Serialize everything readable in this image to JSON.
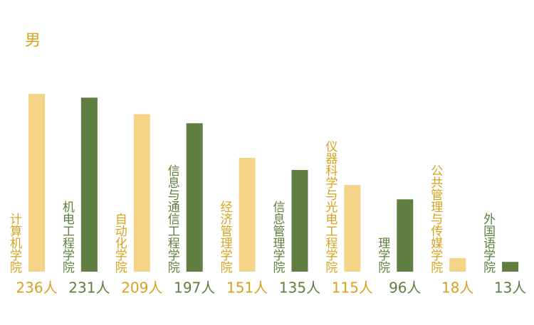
{
  "chart_data": {
    "type": "bar",
    "title": "男",
    "categories": [
      "计算机学院",
      "机电工程学院",
      "自动化学院",
      "信息与通信工程学院",
      "经济管理学院",
      "信息管理学院",
      "仪器科学与光电工程学院",
      "理学院",
      "公共管理与传媒学院",
      "外国语学院"
    ],
    "values": [
      236,
      231,
      209,
      197,
      151,
      135,
      115,
      96,
      18,
      13
    ],
    "value_labels": [
      "236人",
      "231人",
      "209人",
      "197人",
      "151人",
      "135人",
      "115人",
      "96人",
      "18人",
      "13人"
    ],
    "colors": [
      "#f6d487",
      "#5f7e3f"
    ],
    "label_colors": [
      "#d7a21e",
      "#5f7e3f"
    ]
  }
}
